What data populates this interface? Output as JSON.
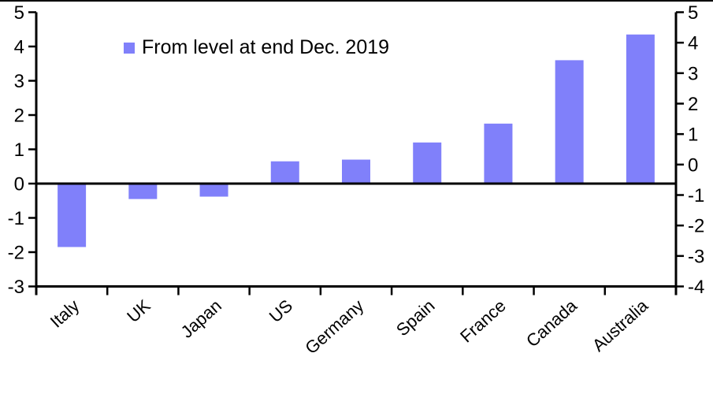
{
  "page": {
    "background_color": "#ffffff",
    "top_border_color": "#000000"
  },
  "chart_data": {
    "type": "bar",
    "title": "",
    "categories": [
      "Italy",
      "UK",
      "Japan",
      "US",
      "Germany",
      "Spain",
      "France",
      "Canada",
      "Australia"
    ],
    "values": [
      -1.85,
      -0.45,
      -0.38,
      0.65,
      0.7,
      1.2,
      1.75,
      3.6,
      4.35
    ],
    "bar_color": "#8080fa",
    "axis_color": "#000000",
    "legend": [
      {
        "label": "From level at end Dec. 2019",
        "color": "#8080fa"
      }
    ],
    "legend_position": "top-left-inside",
    "left_axis": {
      "min": -3,
      "max": 5,
      "ticks": [
        5,
        4,
        3,
        2,
        1,
        0,
        -1,
        -2,
        -3
      ]
    },
    "right_axis": {
      "min": -4,
      "max": 5,
      "ticks": [
        5,
        4,
        3,
        2,
        1,
        0,
        -1,
        -2,
        -3,
        -4
      ]
    },
    "zero_line": true,
    "grid": false,
    "x_labels_rotation_deg": -42
  }
}
